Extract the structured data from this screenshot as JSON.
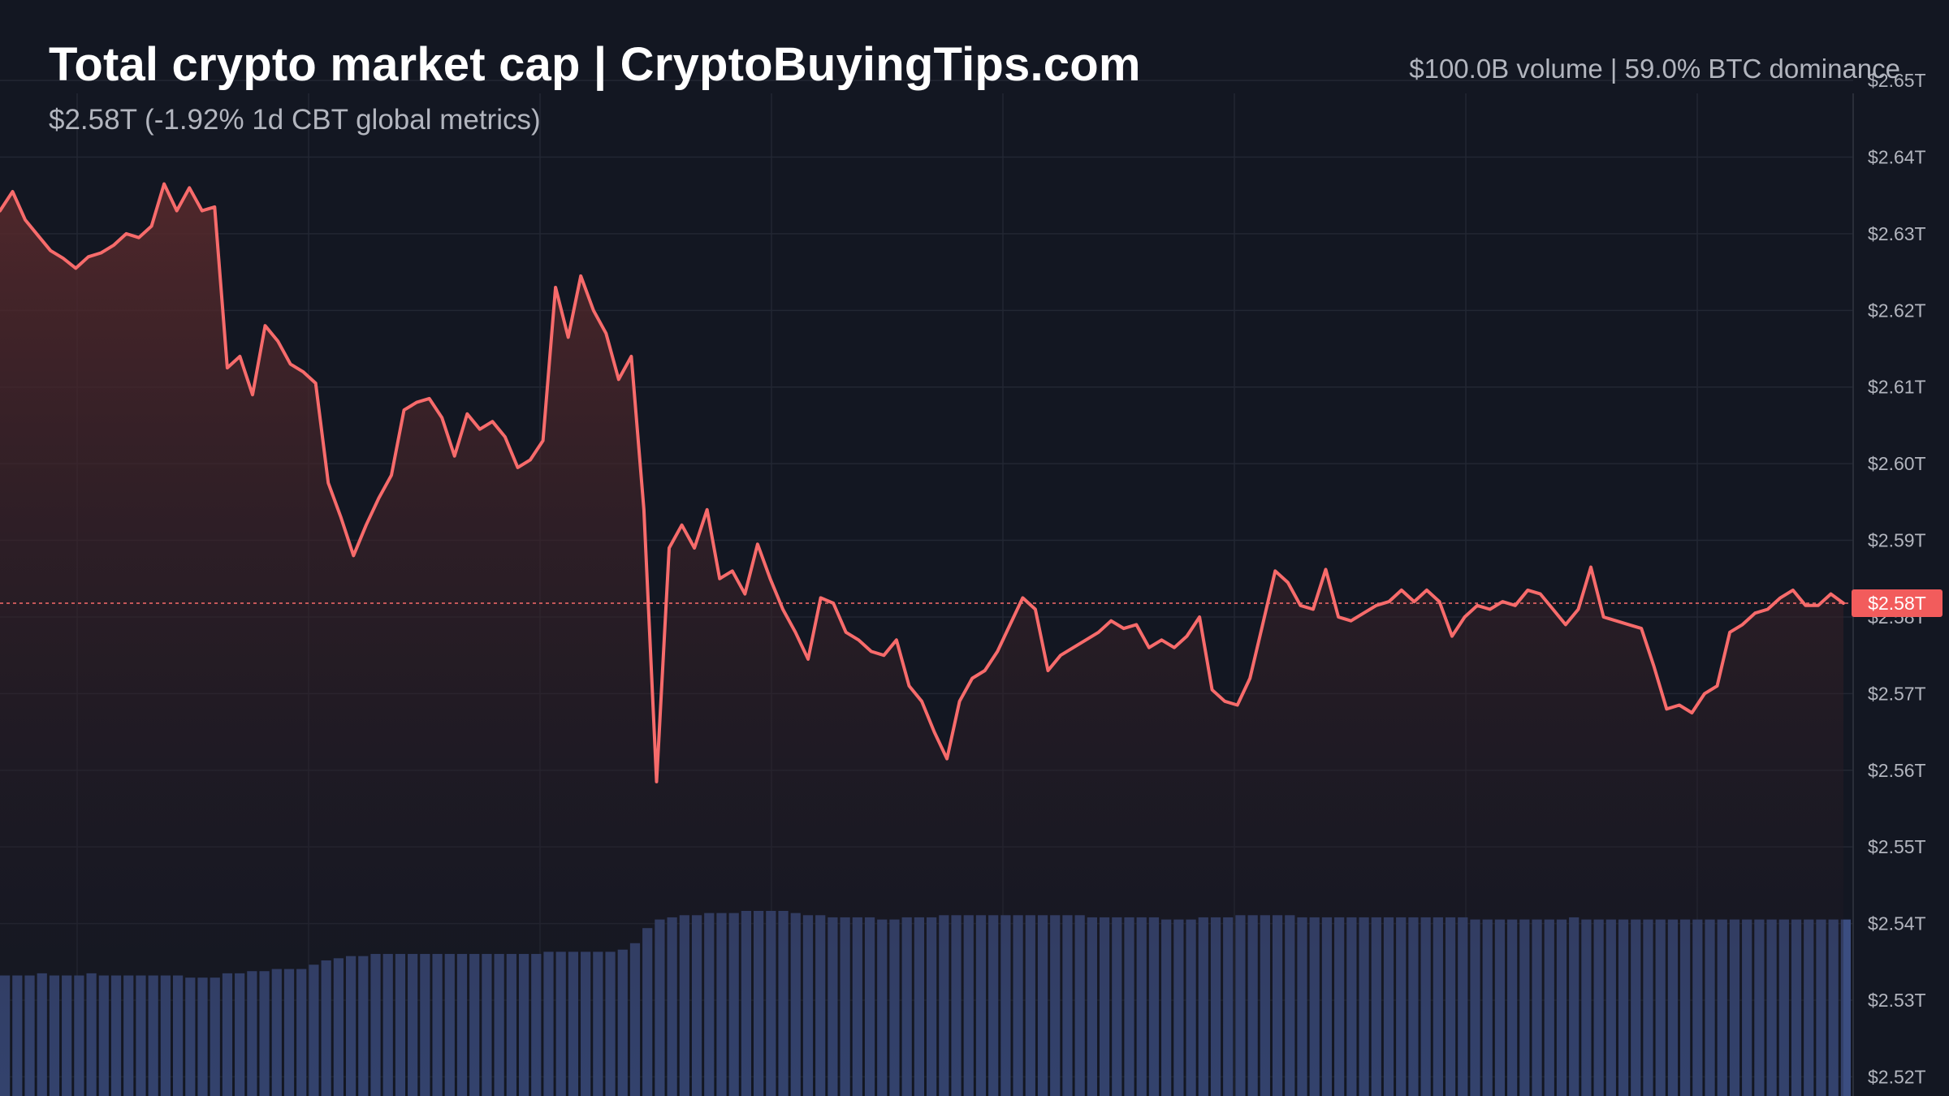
{
  "header": {
    "title": "Total crypto market cap | CryptoBuyingTips.com",
    "subtitle": "$2.58T (-1.92% 1d CBT global metrics)",
    "stats": "$100.0B volume | 59.0% BTC dominance"
  },
  "colors": {
    "background": "#131722",
    "line": "#f76b6b",
    "area_top": "#5a2a2c",
    "volume": "#3b4d80",
    "grid": "#222733",
    "price_tag": "#f25c5c"
  },
  "chart_data": {
    "type": "line",
    "title": "Total crypto market cap | CryptoBuyingTips.com",
    "xlabel": "",
    "ylabel": "",
    "ylim": [
      2.5175,
      2.6605
    ],
    "y_tick_labels": [
      "$2.65T",
      "$2.64T",
      "$2.63T",
      "$2.62T",
      "$2.61T",
      "$2.60T",
      "$2.59T",
      "$2.58T",
      "$2.57T",
      "$2.56T",
      "$2.55T",
      "$2.54T",
      "$2.53T",
      "$2.52T"
    ],
    "y_tick_values": [
      2.65,
      2.64,
      2.63,
      2.62,
      2.61,
      2.6,
      2.59,
      2.58,
      2.57,
      2.56,
      2.55,
      2.54,
      2.53,
      2.52
    ],
    "current_value": 2.5818,
    "current_label": "$2.58T",
    "grid": true,
    "series": [
      {
        "values": [
          2.633,
          2.6355,
          2.6318,
          2.6298,
          2.6278,
          2.6268,
          2.6255,
          2.627,
          2.6275,
          2.6285,
          2.63,
          2.6295,
          2.631,
          2.6365,
          2.633,
          2.636,
          2.633,
          2.6335,
          2.6125,
          2.614,
          2.609,
          2.618,
          2.616,
          2.613,
          2.612,
          2.6105,
          2.5975,
          2.593,
          2.588,
          2.592,
          2.5955,
          2.5985,
          2.607,
          2.608,
          2.6085,
          2.606,
          2.601,
          2.6065,
          2.6045,
          2.6055,
          2.6035,
          2.5995,
          2.6005,
          2.603,
          2.623,
          2.6165,
          2.6245,
          2.62,
          2.617,
          2.611,
          2.614,
          2.594,
          2.5585,
          2.589,
          2.592,
          2.589,
          2.594,
          2.585,
          2.586,
          2.583,
          2.5895,
          2.585,
          2.581,
          2.578,
          2.5745,
          2.5825,
          2.5818,
          2.578,
          2.577,
          2.5755,
          2.575,
          2.577,
          2.571,
          2.569,
          2.565,
          2.5615,
          2.569,
          2.572,
          2.573,
          2.5755,
          2.579,
          2.5825,
          2.581,
          2.573,
          2.575,
          2.576,
          2.577,
          2.578,
          2.5795,
          2.5785,
          2.579,
          2.576,
          2.577,
          2.576,
          2.5775,
          2.58,
          2.5705,
          2.569,
          2.5685,
          2.572,
          2.579,
          2.586,
          2.5845,
          2.5815,
          2.581,
          2.5862,
          2.58,
          2.5795,
          2.5805,
          2.5815,
          2.582,
          2.5835,
          2.582,
          2.5835,
          2.582,
          2.5775,
          2.58,
          2.5815,
          2.581,
          2.582,
          2.5815,
          2.5835,
          2.583,
          2.581,
          2.579,
          2.581,
          2.5865,
          2.58,
          2.5795,
          2.579,
          2.5785,
          2.5735,
          2.568,
          2.5685,
          2.5675,
          2.57,
          2.571,
          2.578,
          2.579,
          2.5805,
          2.581,
          2.5825,
          2.5835,
          2.5815,
          2.5815,
          2.583,
          2.5818
        ]
      }
    ],
    "volume_series": {
      "values": [
        56,
        56,
        56,
        57,
        56,
        56,
        56,
        57,
        56,
        56,
        56,
        56,
        56,
        56,
        56,
        55,
        55,
        55,
        57,
        57,
        58,
        58,
        59,
        59,
        59,
        61,
        63,
        64,
        65,
        65,
        66,
        66,
        66,
        66,
        66,
        66,
        66,
        66,
        66,
        66,
        66,
        66,
        66,
        66,
        67,
        67,
        67,
        67,
        67,
        67,
        68,
        71,
        78,
        82,
        83,
        84,
        84,
        85,
        85,
        85,
        86,
        86,
        86,
        86,
        85,
        84,
        84,
        83,
        83,
        83,
        83,
        82,
        82,
        83,
        83,
        83,
        84,
        84,
        84,
        84,
        84,
        84,
        84,
        84,
        84,
        84,
        84,
        84,
        83,
        83,
        83,
        83,
        83,
        83,
        82,
        82,
        82,
        83,
        83,
        83,
        84,
        84,
        84,
        84,
        84,
        83,
        83,
        83,
        83,
        83,
        83,
        83,
        83,
        83,
        83,
        83,
        83,
        83,
        83,
        82,
        82,
        82,
        82,
        82,
        82,
        82,
        82,
        83,
        82,
        82,
        82,
        82,
        82,
        82,
        82,
        82,
        82,
        82,
        82,
        82,
        82,
        82,
        82,
        82,
        82,
        82,
        82,
        82,
        82,
        82
      ]
    }
  }
}
